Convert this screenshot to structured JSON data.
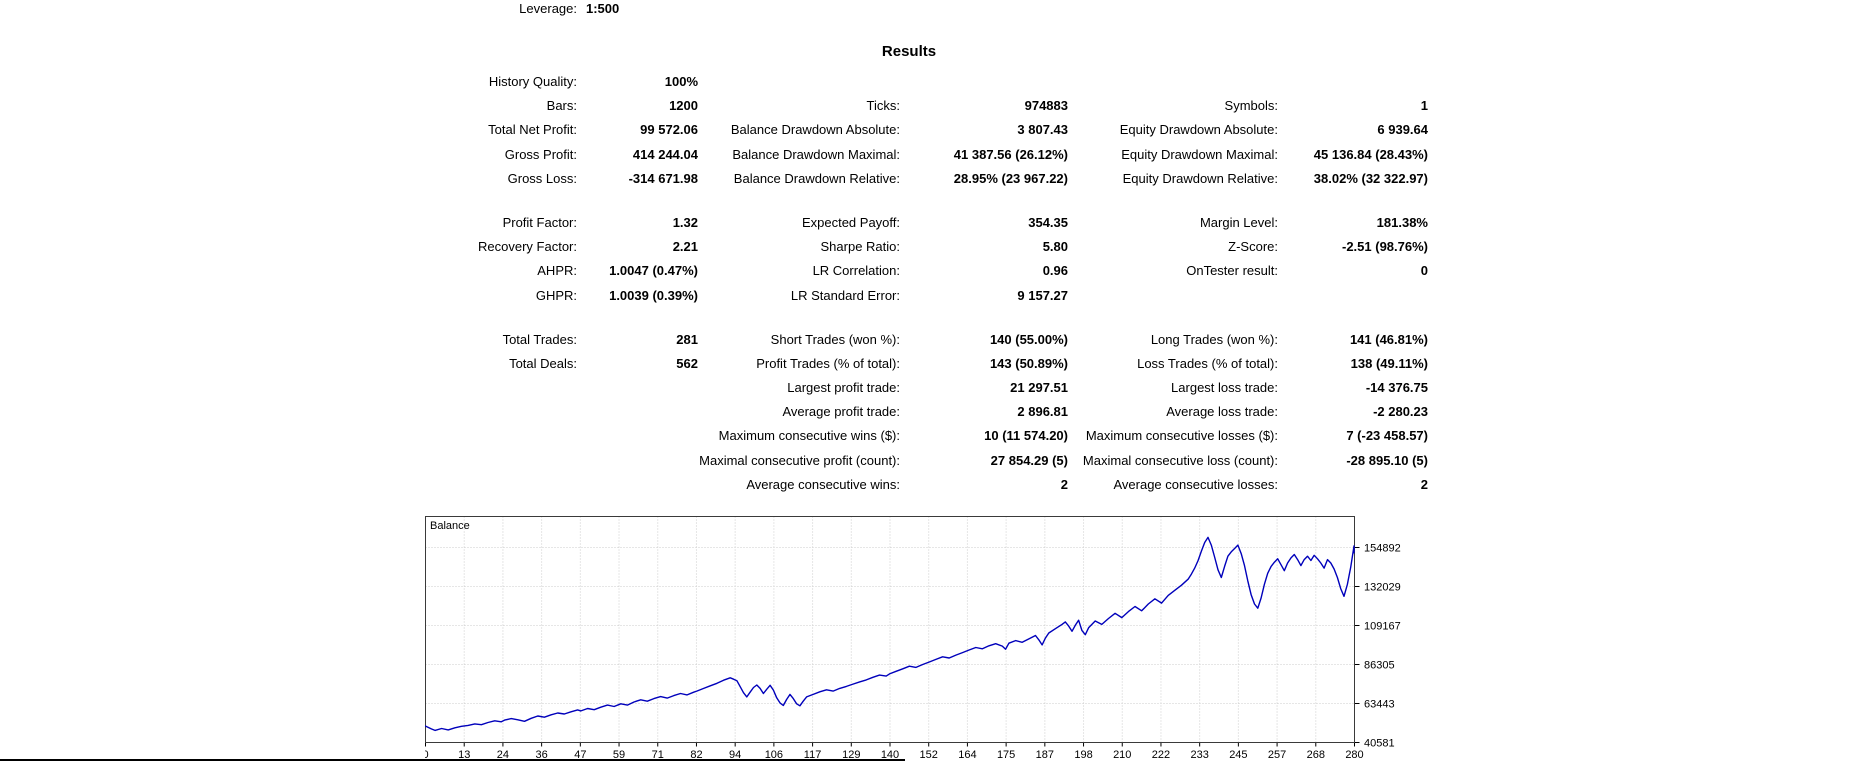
{
  "settings": {
    "leverage_label": "Leverage:",
    "leverage_value": "1:500"
  },
  "results": {
    "title": "Results"
  },
  "stats": {
    "groups": [
      {
        "rows": [
          {
            "cells": [
              {
                "l": "History Quality:",
                "v": "100%"
              },
              null,
              null
            ]
          },
          {
            "cells": [
              {
                "l": "Bars:",
                "v": "1200"
              },
              {
                "l": "Ticks:",
                "v": "974883"
              },
              {
                "l": "Symbols:",
                "v": "1"
              }
            ]
          },
          {
            "cells": [
              {
                "l": "Total Net Profit:",
                "v": "99 572.06"
              },
              {
                "l": "Balance Drawdown Absolute:",
                "v": "3 807.43"
              },
              {
                "l": "Equity Drawdown Absolute:",
                "v": "6 939.64"
              }
            ]
          },
          {
            "cells": [
              {
                "l": "Gross Profit:",
                "v": "414 244.04"
              },
              {
                "l": "Balance Drawdown Maximal:",
                "v": "41 387.56 (26.12%)"
              },
              {
                "l": "Equity Drawdown Maximal:",
                "v": "45 136.84 (28.43%)"
              }
            ]
          },
          {
            "cells": [
              {
                "l": "Gross Loss:",
                "v": "-314 671.98"
              },
              {
                "l": "Balance Drawdown Relative:",
                "v": "28.95% (23 967.22)"
              },
              {
                "l": "Equity Drawdown Relative:",
                "v": "38.02% (32 322.97)"
              }
            ]
          }
        ]
      },
      {
        "rows": [
          {
            "cells": [
              {
                "l": "Profit Factor:",
                "v": "1.32"
              },
              {
                "l": "Expected Payoff:",
                "v": "354.35"
              },
              {
                "l": "Margin Level:",
                "v": "181.38%"
              }
            ]
          },
          {
            "cells": [
              {
                "l": "Recovery Factor:",
                "v": "2.21"
              },
              {
                "l": "Sharpe Ratio:",
                "v": "5.80"
              },
              {
                "l": "Z-Score:",
                "v": "-2.51 (98.76%)"
              }
            ]
          },
          {
            "cells": [
              {
                "l": "AHPR:",
                "v": "1.0047 (0.47%)"
              },
              {
                "l": "LR Correlation:",
                "v": "0.96"
              },
              {
                "l": "OnTester result:",
                "v": "0"
              }
            ]
          },
          {
            "cells": [
              {
                "l": "GHPR:",
                "v": "1.0039 (0.39%)"
              },
              {
                "l": "LR Standard Error:",
                "v": "9 157.27"
              },
              null
            ]
          }
        ]
      },
      {
        "rows": [
          {
            "cells": [
              {
                "l": "Total Trades:",
                "v": "281"
              },
              {
                "l": "Short Trades (won %):",
                "v": "140 (55.00%)"
              },
              {
                "l": "Long Trades (won %):",
                "v": "141 (46.81%)"
              }
            ]
          },
          {
            "cells": [
              {
                "l": "Total Deals:",
                "v": "562"
              },
              {
                "l": "Profit Trades (% of total):",
                "v": "143 (50.89%)"
              },
              {
                "l": "Loss Trades (% of total):",
                "v": "138 (49.11%)"
              }
            ]
          },
          {
            "cells": [
              null,
              {
                "l": "Largest profit trade:",
                "v": "21 297.51"
              },
              {
                "l": "Largest loss trade:",
                "v": "-14 376.75"
              }
            ]
          },
          {
            "cells": [
              null,
              {
                "l": "Average profit trade:",
                "v": "2 896.81"
              },
              {
                "l": "Average loss trade:",
                "v": "-2 280.23"
              }
            ]
          },
          {
            "cells": [
              null,
              {
                "l": "Maximum consecutive wins ($):",
                "v": "10 (11 574.20)"
              },
              {
                "l": "Maximum consecutive losses ($):",
                "v": "7 (-23 458.57)"
              }
            ]
          },
          {
            "cells": [
              null,
              {
                "l": "Maximal consecutive profit (count):",
                "v": "27 854.29 (5)"
              },
              {
                "l": "Maximal consecutive loss (count):",
                "v": "-28 895.10 (5)"
              }
            ]
          },
          {
            "cells": [
              null,
              {
                "l": "Average consecutive wins:",
                "v": "2"
              },
              {
                "l": "Average consecutive losses:",
                "v": "2"
              }
            ]
          }
        ]
      }
    ]
  },
  "chart_data": {
    "type": "line",
    "title": "Balance",
    "xlabel": "",
    "ylabel": "",
    "x_ticks": [
      0,
      13,
      24,
      36,
      47,
      59,
      71,
      82,
      94,
      106,
      117,
      129,
      140,
      152,
      164,
      175,
      187,
      198,
      210,
      222,
      233,
      245,
      257,
      268,
      280
    ],
    "y_ticks": [
      40581,
      63443,
      86305,
      109167,
      132029,
      154892
    ],
    "x_range": [
      0,
      281
    ],
    "y_range": [
      40581,
      173280
    ],
    "grid": true,
    "legend_position": "none",
    "grid_color": "#cdcdcd",
    "border_color": "#3a3a3a",
    "series": [
      {
        "name": "Balance",
        "color": "#0000bb",
        "points": [
          [
            0,
            50000
          ],
          [
            2,
            48200
          ],
          [
            3,
            47400
          ],
          [
            5,
            48500
          ],
          [
            7,
            47700
          ],
          [
            9,
            48900
          ],
          [
            11,
            49800
          ],
          [
            13,
            50300
          ],
          [
            15,
            51200
          ],
          [
            17,
            50700
          ],
          [
            19,
            52000
          ],
          [
            21,
            53000
          ],
          [
            23,
            52400
          ],
          [
            24,
            53400
          ],
          [
            26,
            54300
          ],
          [
            28,
            53600
          ],
          [
            30,
            52700
          ],
          [
            32,
            54500
          ],
          [
            34,
            55800
          ],
          [
            36,
            55100
          ],
          [
            38,
            56500
          ],
          [
            40,
            57600
          ],
          [
            42,
            57000
          ],
          [
            44,
            58300
          ],
          [
            46,
            59400
          ],
          [
            47,
            58800
          ],
          [
            49,
            60200
          ],
          [
            51,
            59500
          ],
          [
            53,
            61000
          ],
          [
            55,
            62200
          ],
          [
            57,
            61400
          ],
          [
            59,
            63000
          ],
          [
            61,
            62200
          ],
          [
            63,
            64000
          ],
          [
            65,
            65300
          ],
          [
            67,
            64500
          ],
          [
            69,
            66000
          ],
          [
            71,
            67200
          ],
          [
            73,
            66300
          ],
          [
            75,
            67800
          ],
          [
            77,
            69000
          ],
          [
            79,
            68200
          ],
          [
            81,
            69800
          ],
          [
            82,
            70500
          ],
          [
            84,
            72000
          ],
          [
            86,
            73500
          ],
          [
            88,
            75000
          ],
          [
            90,
            76800
          ],
          [
            92,
            78200
          ],
          [
            93,
            77400
          ],
          [
            94,
            76500
          ],
          [
            95,
            73000
          ],
          [
            96,
            69500
          ],
          [
            97,
            67000
          ],
          [
            98,
            69800
          ],
          [
            99,
            72500
          ],
          [
            100,
            74000
          ],
          [
            101,
            72000
          ],
          [
            102,
            69000
          ],
          [
            103,
            71500
          ],
          [
            104,
            73800
          ],
          [
            105,
            71000
          ],
          [
            106,
            66500
          ],
          [
            107,
            63500
          ],
          [
            108,
            62000
          ],
          [
            109,
            65500
          ],
          [
            110,
            68500
          ],
          [
            111,
            66000
          ],
          [
            112,
            63000
          ],
          [
            113,
            61800
          ],
          [
            114,
            64500
          ],
          [
            115,
            67000
          ],
          [
            117,
            68500
          ],
          [
            119,
            70000
          ],
          [
            121,
            71200
          ],
          [
            123,
            70400
          ],
          [
            125,
            72000
          ],
          [
            127,
            73200
          ],
          [
            129,
            74500
          ],
          [
            131,
            75800
          ],
          [
            133,
            77000
          ],
          [
            135,
            78500
          ],
          [
            137,
            79800
          ],
          [
            139,
            79200
          ],
          [
            140,
            80500
          ],
          [
            142,
            82000
          ],
          [
            144,
            83500
          ],
          [
            146,
            85000
          ],
          [
            148,
            84300
          ],
          [
            150,
            86000
          ],
          [
            152,
            87500
          ],
          [
            154,
            89000
          ],
          [
            156,
            90500
          ],
          [
            158,
            89800
          ],
          [
            160,
            91500
          ],
          [
            162,
            93000
          ],
          [
            164,
            94500
          ],
          [
            166,
            96000
          ],
          [
            168,
            95200
          ],
          [
            170,
            97000
          ],
          [
            172,
            98200
          ],
          [
            174,
            96800
          ],
          [
            175,
            95000
          ],
          [
            176,
            98500
          ],
          [
            178,
            100000
          ],
          [
            180,
            99000
          ],
          [
            182,
            101000
          ],
          [
            184,
            103000
          ],
          [
            185,
            100500
          ],
          [
            186,
            97500
          ],
          [
            187,
            101500
          ],
          [
            188,
            104500
          ],
          [
            190,
            107000
          ],
          [
            192,
            109500
          ],
          [
            193,
            111000
          ],
          [
            194,
            108500
          ],
          [
            195,
            105500
          ],
          [
            196,
            109000
          ],
          [
            197,
            112000
          ],
          [
            198,
            106000
          ],
          [
            199,
            103500
          ],
          [
            200,
            107500
          ],
          [
            202,
            111500
          ],
          [
            204,
            109500
          ],
          [
            206,
            113000
          ],
          [
            208,
            116000
          ],
          [
            210,
            113500
          ],
          [
            212,
            117000
          ],
          [
            214,
            120000
          ],
          [
            216,
            117500
          ],
          [
            218,
            121500
          ],
          [
            220,
            124500
          ],
          [
            222,
            122000
          ],
          [
            224,
            126500
          ],
          [
            226,
            129500
          ],
          [
            228,
            132500
          ],
          [
            230,
            136000
          ],
          [
            231,
            139000
          ],
          [
            232,
            142500
          ],
          [
            233,
            147000
          ],
          [
            234,
            152500
          ],
          [
            235,
            157500
          ],
          [
            236,
            160500
          ],
          [
            237,
            156000
          ],
          [
            238,
            149000
          ],
          [
            239,
            141500
          ],
          [
            240,
            137000
          ],
          [
            241,
            143500
          ],
          [
            242,
            149500
          ],
          [
            243,
            152000
          ],
          [
            244,
            154000
          ],
          [
            245,
            156000
          ],
          [
            246,
            151000
          ],
          [
            247,
            144000
          ],
          [
            248,
            135000
          ],
          [
            249,
            127000
          ],
          [
            250,
            121500
          ],
          [
            251,
            119000
          ],
          [
            252,
            125000
          ],
          [
            253,
            133000
          ],
          [
            254,
            139500
          ],
          [
            255,
            143500
          ],
          [
            256,
            146000
          ],
          [
            257,
            148000
          ],
          [
            258,
            144500
          ],
          [
            259,
            141000
          ],
          [
            260,
            145500
          ],
          [
            261,
            148500
          ],
          [
            262,
            150500
          ],
          [
            263,
            147500
          ],
          [
            264,
            144000
          ],
          [
            265,
            147500
          ],
          [
            266,
            149500
          ],
          [
            267,
            147000
          ],
          [
            268,
            150000
          ],
          [
            269,
            148000
          ],
          [
            270,
            145500
          ],
          [
            271,
            142500
          ],
          [
            272,
            147500
          ],
          [
            273,
            145500
          ],
          [
            274,
            142000
          ],
          [
            275,
            137000
          ],
          [
            276,
            130500
          ],
          [
            277,
            126000
          ],
          [
            278,
            133000
          ],
          [
            279,
            143000
          ],
          [
            280,
            155500
          ],
          [
            281,
            151500
          ]
        ]
      }
    ]
  }
}
